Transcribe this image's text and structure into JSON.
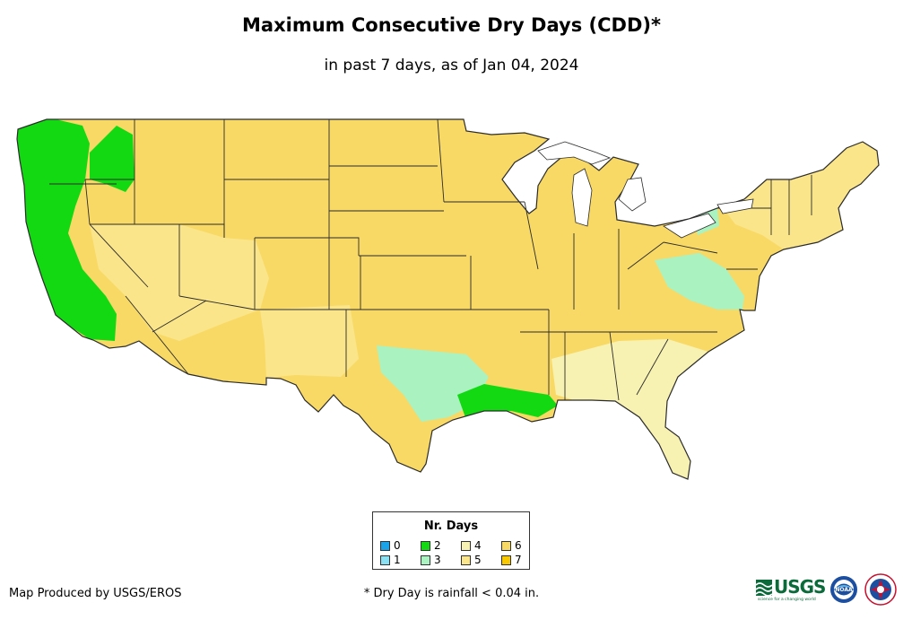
{
  "header": {
    "title": "Maximum Consecutive Dry Days (CDD)*",
    "subtitle": "in past 7 days, as of Jan 04, 2024"
  },
  "colors": {
    "c0": "#1aa3e8",
    "c1": "#88e0f2",
    "c2": "#13d913",
    "c3": "#aaf2c0",
    "c4": "#f8f2b2",
    "c5": "#fbe58a",
    "c6": "#f8d965",
    "c7": "#f8c800",
    "state_border": "#2b2b2b",
    "land": "#f8d965"
  },
  "legend": {
    "title": "Nr. Days",
    "items": [
      {
        "label": "0",
        "color_key": "c0"
      },
      {
        "label": "1",
        "color_key": "c1"
      },
      {
        "label": "2",
        "color_key": "c2"
      },
      {
        "label": "3",
        "color_key": "c3"
      },
      {
        "label": "4",
        "color_key": "c4"
      },
      {
        "label": "5",
        "color_key": "c5"
      },
      {
        "label": "6",
        "color_key": "c6"
      },
      {
        "label": "7",
        "color_key": "c7"
      }
    ]
  },
  "footer": {
    "credit": "Map Produced by USGS/EROS",
    "footnote": "* Dry Day is rainfall < 0.04 in.",
    "usgs_logo_text": "USGS",
    "usgs_tagline": "science for a changing world",
    "noaa_logo_text": "NOAA"
  },
  "map": {
    "region": "Contiguous United States",
    "regions": [
      {
        "name": "Pacific coast (WA, OR, CA)",
        "days": 2
      },
      {
        "name": "Northern Plains & Upper Midwest",
        "days": 6
      },
      {
        "name": "Central Texas",
        "days": 3
      },
      {
        "name": "Gulf Coast (LA)",
        "days": 2
      },
      {
        "name": "Interior West (NV, UT, AZ, NM)",
        "days": 5
      },
      {
        "name": "Southeast (GA, FL)",
        "days": 4
      },
      {
        "name": "Mid-Atlantic",
        "days": 3
      },
      {
        "name": "Northeast",
        "days": 5
      }
    ]
  }
}
